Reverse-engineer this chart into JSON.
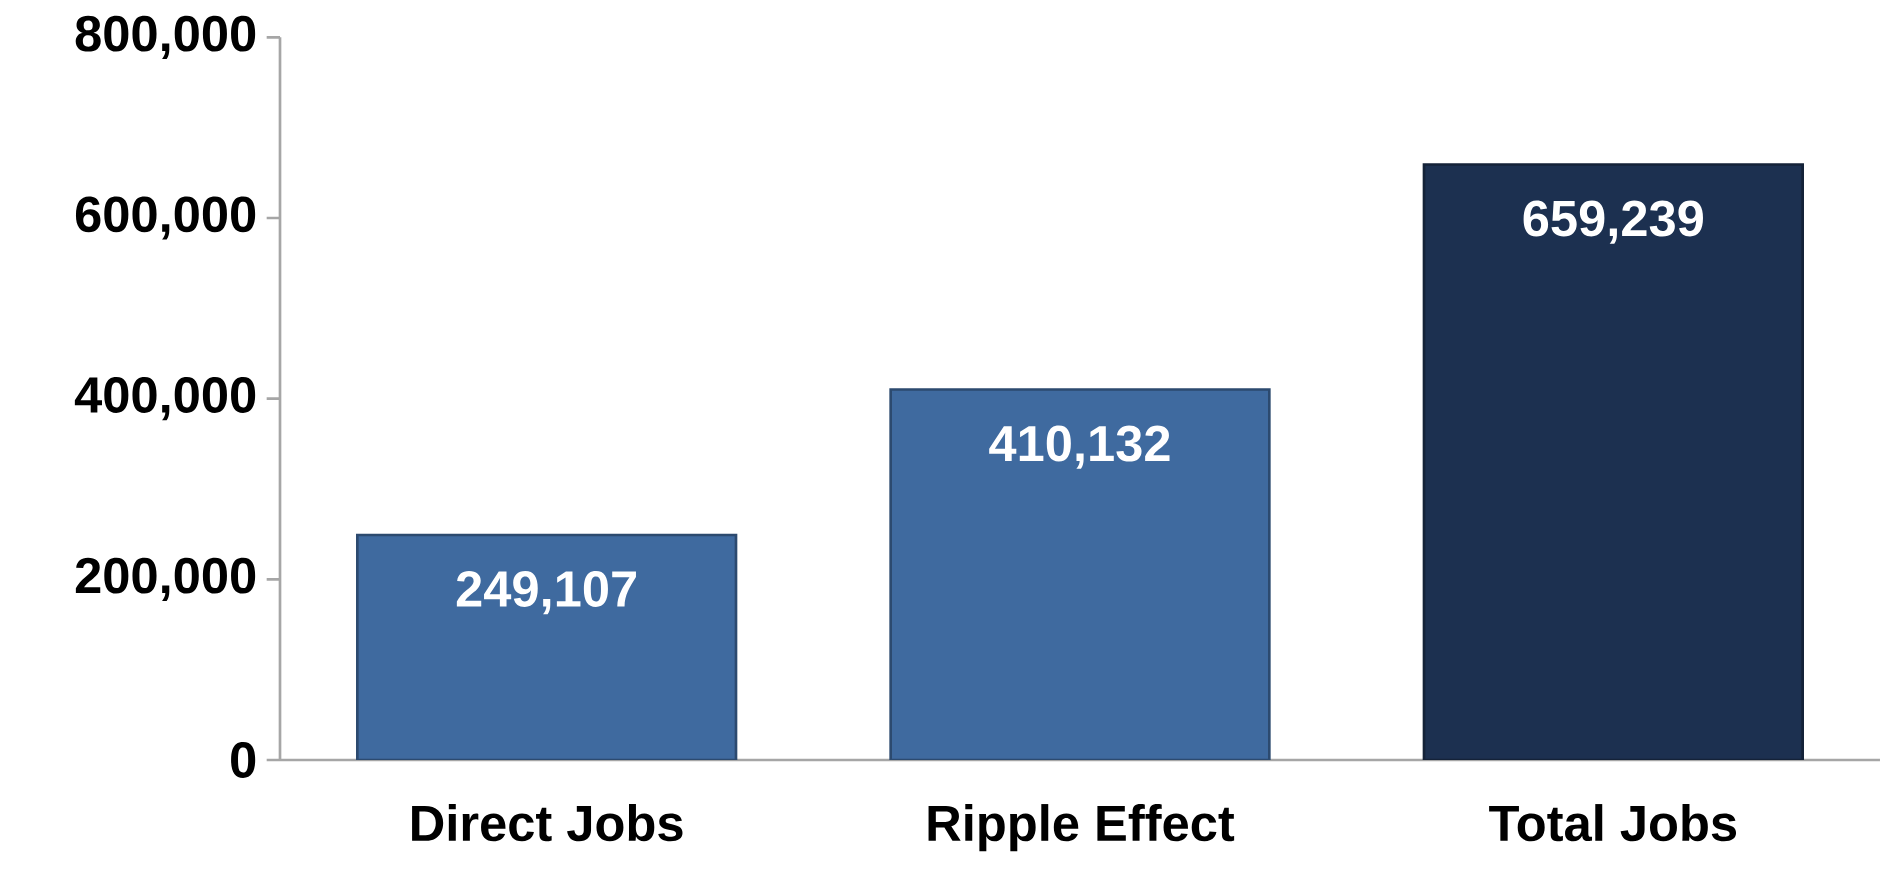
{
  "chart_data": {
    "type": "bar",
    "categories": [
      "Direct Jobs",
      "Ripple Effect",
      "Total Jobs"
    ],
    "values": [
      249107,
      410132,
      659239
    ],
    "colors": [
      "#3f6a9f",
      "#3f6a9f",
      "#1c3050"
    ],
    "value_labels": [
      "249,107",
      "410,132",
      "659,239"
    ],
    "ylim": [
      0,
      800000
    ],
    "yticks": [
      {
        "value": 0,
        "label": "0"
      },
      {
        "value": 200000,
        "label": "200,000"
      },
      {
        "value": 400000,
        "label": "400,000"
      },
      {
        "value": 600000,
        "label": "600,000"
      },
      {
        "value": 800000,
        "label": "800,000"
      }
    ],
    "grid": false
  }
}
